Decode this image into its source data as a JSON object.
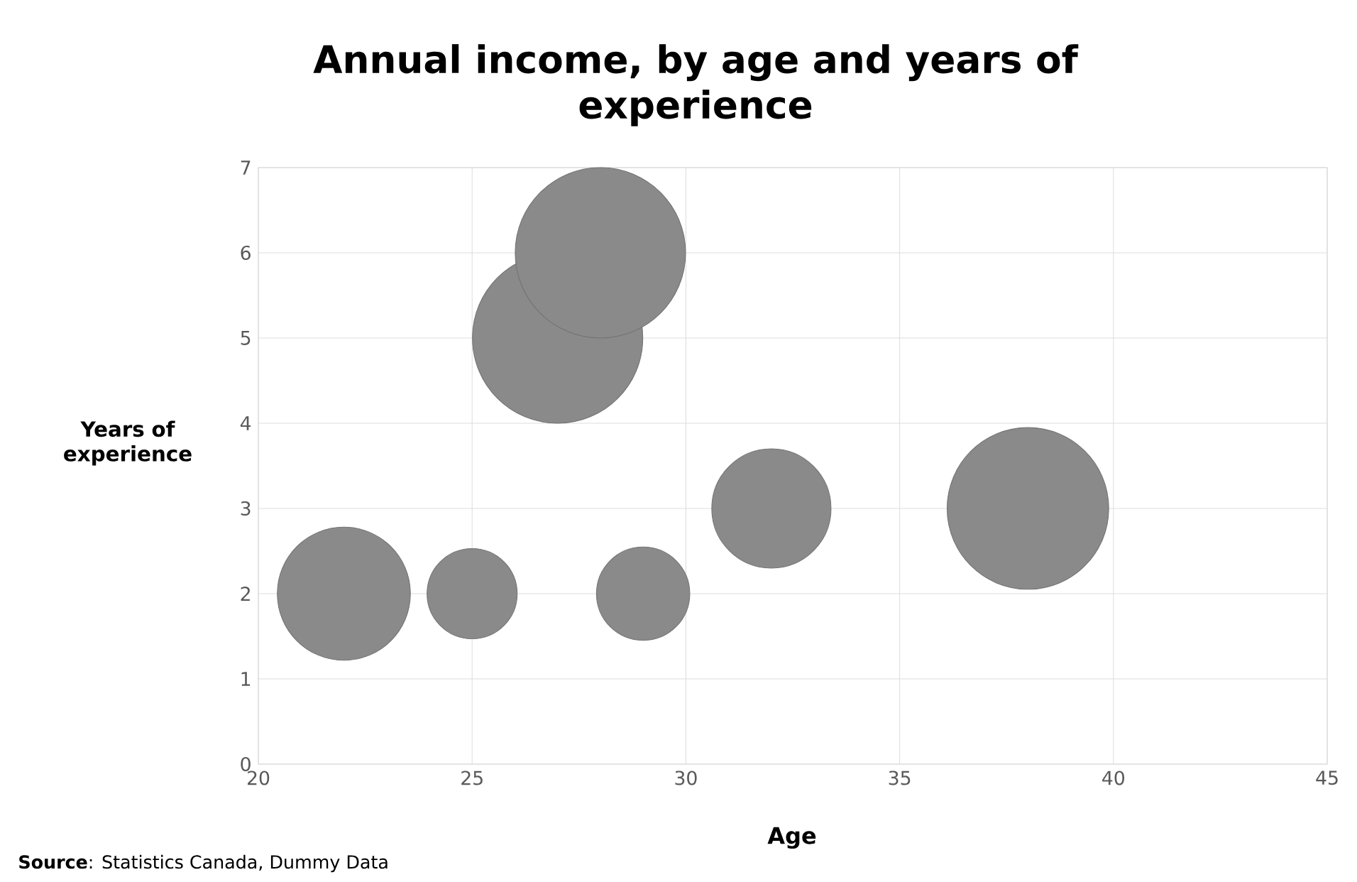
{
  "chart_data": {
    "type": "bubble",
    "title": "Annual income, by age and years of experience",
    "xlabel": "Age",
    "ylabel": "Years of experience",
    "x": [
      22,
      25,
      27,
      28,
      29,
      32,
      38
    ],
    "values": [
      2,
      2,
      5,
      6,
      2,
      3,
      3
    ],
    "sizes": [
      0.61,
      0.28,
      1,
      1,
      0.3,
      0.49,
      0.9
    ],
    "color": "#8a8a8a",
    "xlim": [
      20,
      45
    ],
    "xticks": [
      20,
      25,
      30,
      35,
      40,
      45
    ],
    "ylim": [
      0,
      7
    ],
    "yticks": [
      0,
      1,
      2,
      3,
      4,
      5,
      6,
      7
    ],
    "grid": true,
    "annotations": [
      "**Source**: Statistics Canada, Dummy Data"
    ]
  }
}
